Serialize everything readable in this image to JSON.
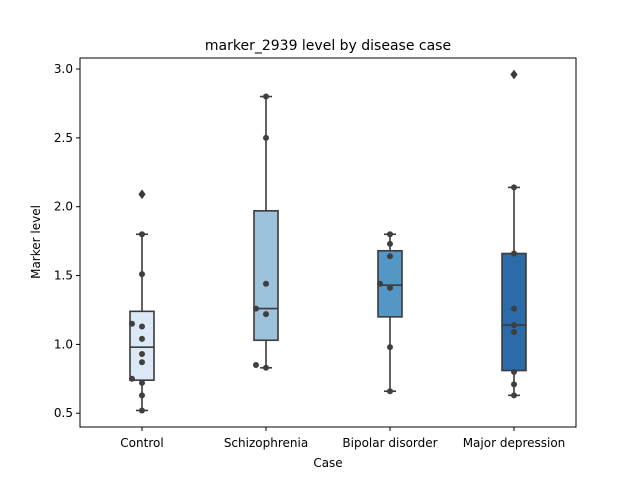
{
  "chart_data": {
    "type": "box",
    "title": "marker_2939 level by disease case",
    "xlabel": "Case",
    "ylabel": "Marker level",
    "ylim": [
      0.4,
      3.08
    ],
    "yticks": [
      "0.5",
      "1.0",
      "1.5",
      "2.0",
      "2.5",
      "3.0"
    ],
    "grid": false,
    "categories": [
      "Control",
      "Schizophrenia",
      "Bipolar disorder",
      "Major depression"
    ],
    "colors": [
      "#dbe8f5",
      "#9cc2dc",
      "#5497c6",
      "#2c6ba9"
    ],
    "boxes": [
      {
        "category": "Control",
        "q1": 0.74,
        "median": 0.98,
        "q3": 1.24,
        "whisker_low": 0.52,
        "whisker_high": 1.8,
        "outliers": [
          2.09
        ],
        "points": [
          0.52,
          0.63,
          0.72,
          0.75,
          0.87,
          0.93,
          1.04,
          1.13,
          1.15,
          1.51,
          1.8
        ]
      },
      {
        "category": "Schizophrenia",
        "q1": 1.03,
        "median": 1.26,
        "q3": 1.97,
        "whisker_low": 0.83,
        "whisker_high": 2.8,
        "outliers": [],
        "points": [
          0.83,
          0.85,
          1.22,
          1.26,
          1.44,
          2.5,
          2.8
        ]
      },
      {
        "category": "Bipolar disorder",
        "q1": 1.2,
        "median": 1.43,
        "q3": 1.68,
        "whisker_low": 0.66,
        "whisker_high": 1.8,
        "outliers": [],
        "points": [
          0.66,
          0.98,
          1.41,
          1.44,
          1.64,
          1.73,
          1.8
        ]
      },
      {
        "category": "Major depression",
        "q1": 0.81,
        "median": 1.14,
        "q3": 1.66,
        "whisker_low": 0.63,
        "whisker_high": 2.14,
        "outliers": [
          2.96
        ],
        "points": [
          0.63,
          0.71,
          0.8,
          1.09,
          1.14,
          1.26,
          1.66,
          2.14
        ]
      }
    ]
  }
}
